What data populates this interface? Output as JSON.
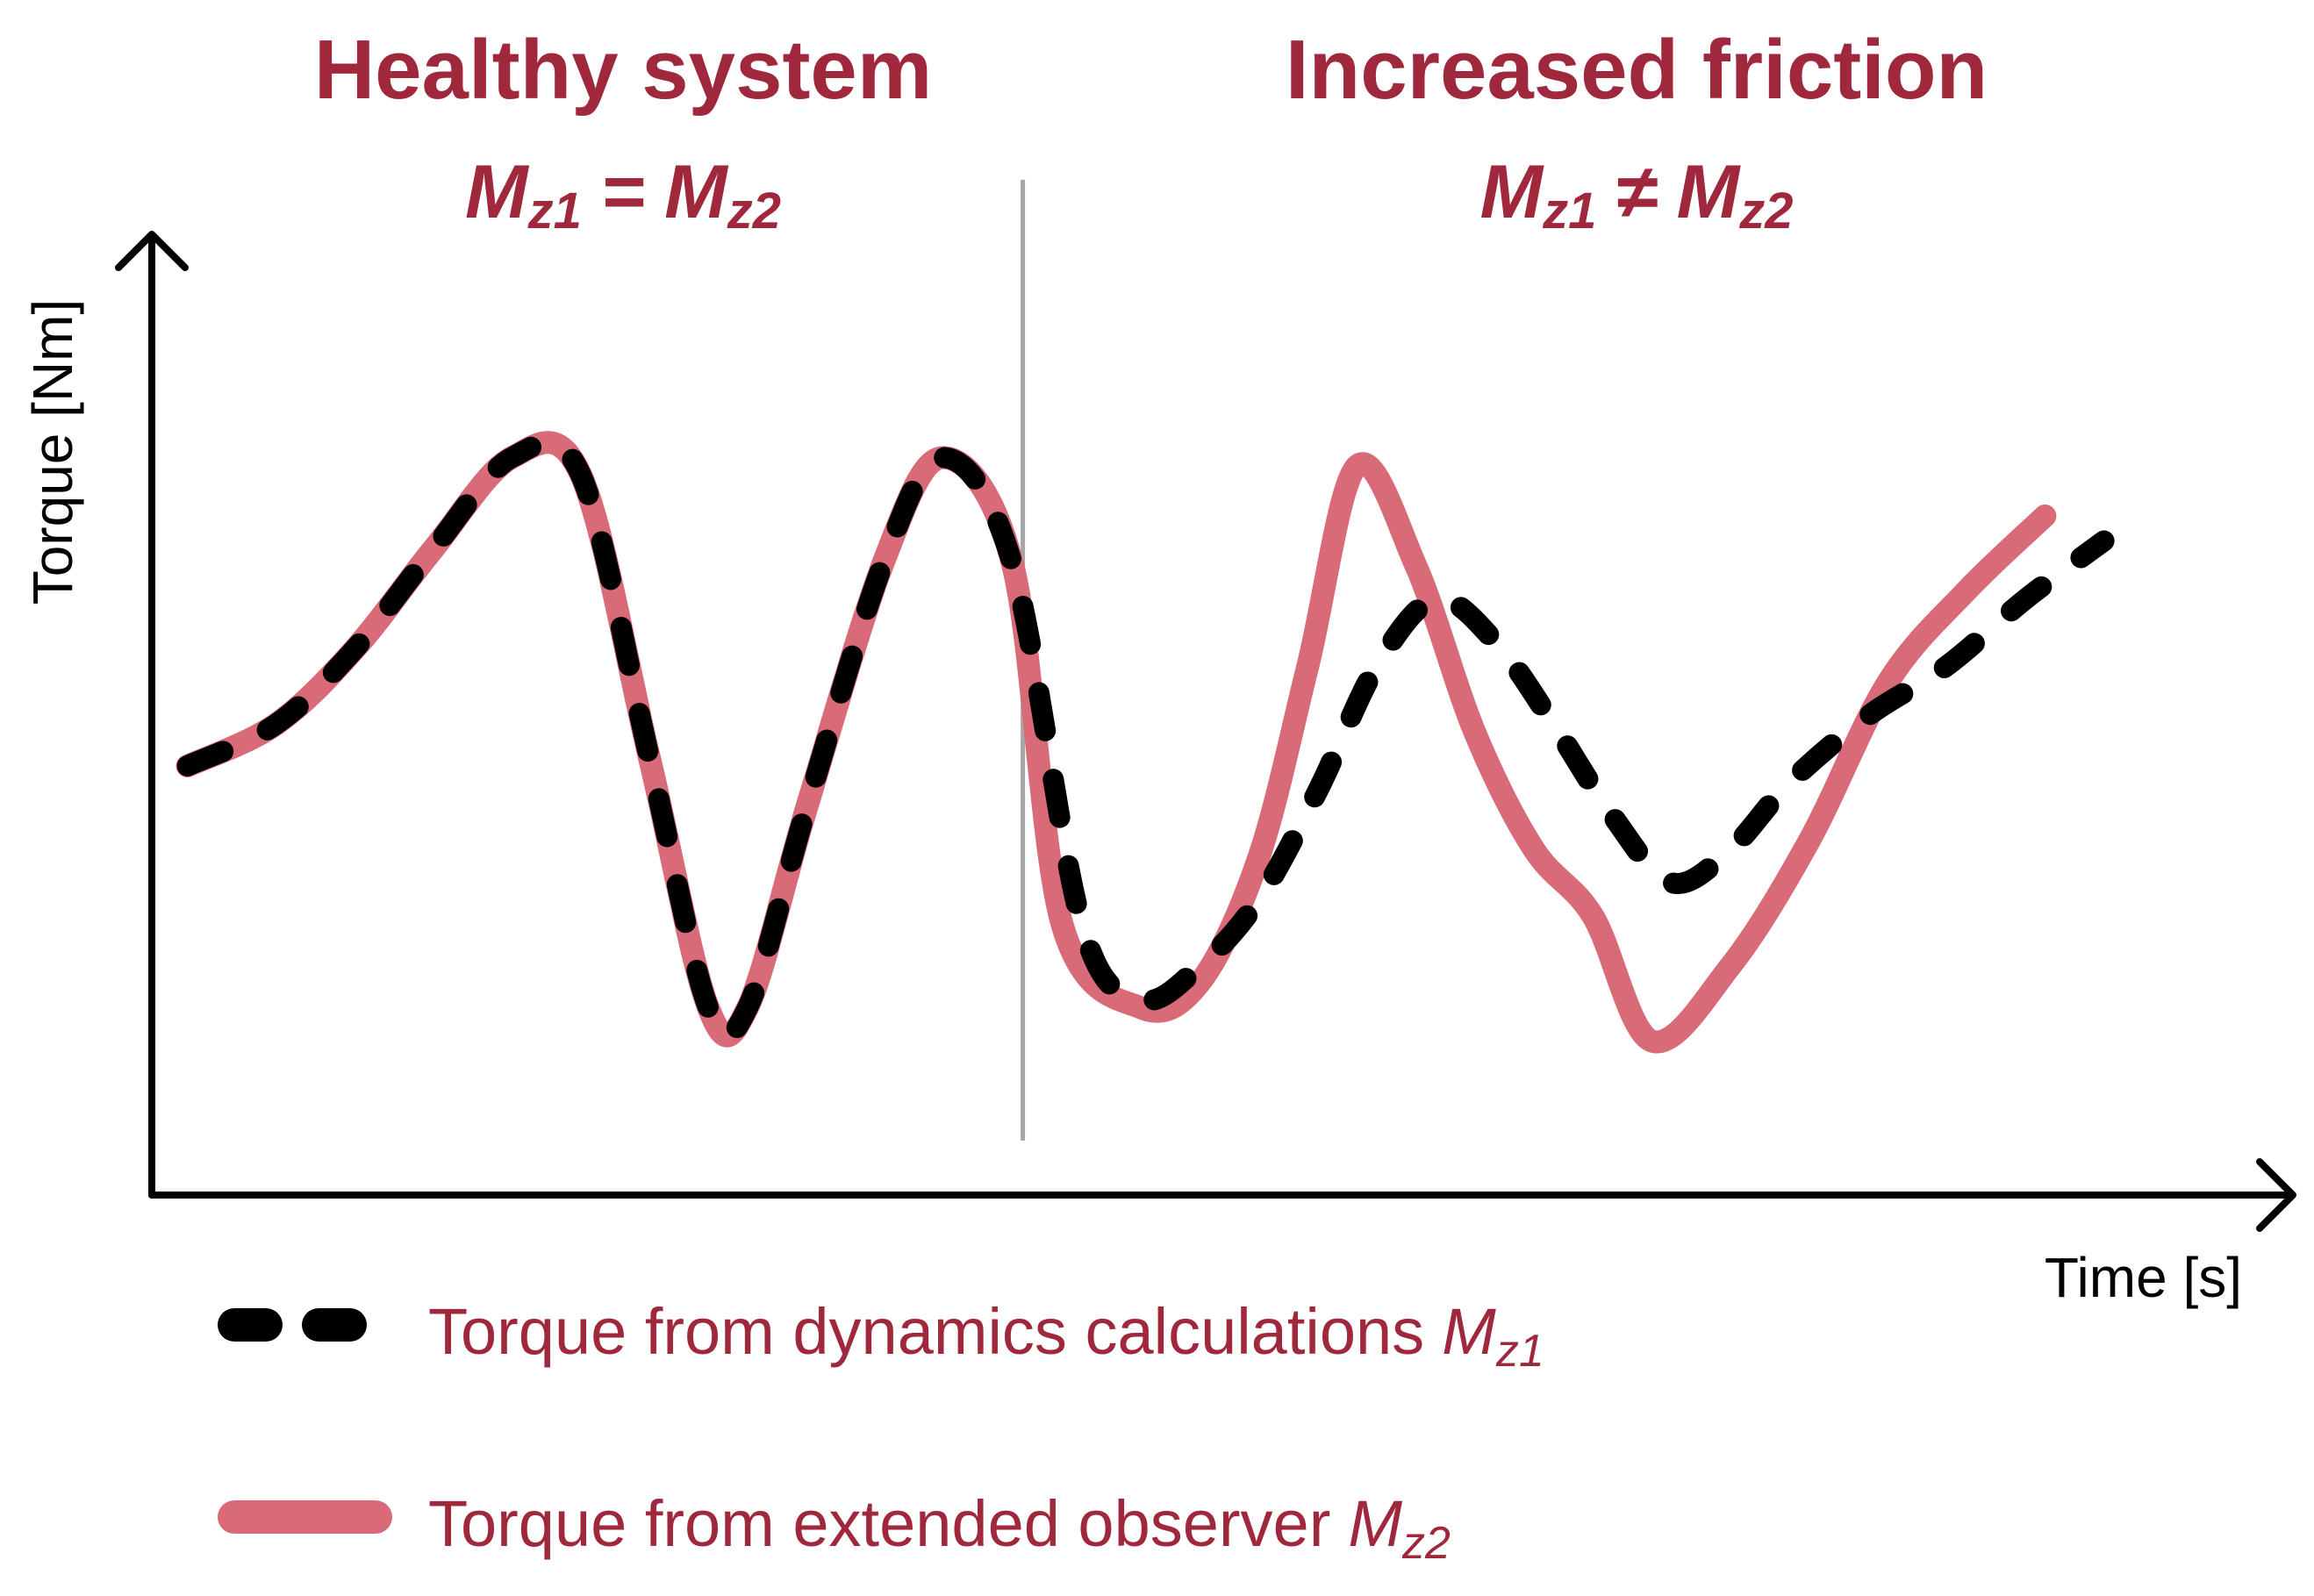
{
  "colors": {
    "accent": "#a0283c",
    "observer_line": "#d96a78",
    "dynamics_line": "#000000",
    "divider": "#a6a6a6",
    "axis": "#000000"
  },
  "sections": {
    "left": {
      "title": "Healthy system",
      "formula": {
        "lhs": "M",
        "lhs_sub": "z1",
        "op": "=",
        "rhs": "M",
        "rhs_sub": "z2"
      }
    },
    "right": {
      "title": "Increased friction",
      "formula": {
        "lhs": "M",
        "lhs_sub": "z1",
        "op": "≠",
        "rhs": "M",
        "rhs_sub": "z2"
      }
    }
  },
  "chart_data": {
    "type": "line",
    "xlabel": "Time [s]",
    "ylabel": "Torque [Nm]",
    "axis_ticks": "none",
    "grid": false,
    "legend_placement": "bottom",
    "xlim": [
      0,
      100
    ],
    "ylim": [
      0,
      100
    ],
    "divider_x": 44,
    "series": [
      {
        "name": "Torque from dynamics calculations",
        "symbol": "M",
        "symbol_sub": "z1",
        "style": "dashed",
        "color": "#000000",
        "x": [
          1.5,
          6,
          10,
          14,
          18,
          21.5,
          25,
          28,
          30,
          33,
          37,
          40,
          43.5,
          47,
          50,
          53,
          56,
          59,
          62,
          65,
          68,
          71,
          74,
          77,
          80,
          83,
          87,
          91,
          95,
          99
        ],
        "y": [
          46,
          51,
          60,
          72,
          83,
          81,
          47,
          17,
          17,
          41,
          71,
          83,
          70,
          27,
          18,
          22,
          30,
          43,
          58,
          66,
          61,
          51,
          40,
          32,
          36,
          44,
          52,
          58,
          66,
          73
        ]
      },
      {
        "name": "Torque from extended observer",
        "symbol": "M",
        "symbol_sub": "z2",
        "style": "solid",
        "color": "#d96a78",
        "x": [
          1.5,
          6,
          10,
          14,
          18,
          21.5,
          25,
          28,
          30,
          33,
          37,
          40,
          43.5,
          46,
          50,
          53,
          56,
          58.5,
          61,
          64,
          67,
          70,
          73,
          76,
          80,
          84,
          88,
          92,
          96
        ],
        "y": [
          46,
          51,
          60,
          72,
          83,
          81,
          47,
          17,
          17,
          41,
          71,
          83,
          70,
          27,
          17,
          20,
          35,
          58,
          82,
          70,
          50,
          36,
          28,
          13,
          22,
          37,
          56,
          67,
          76
        ]
      }
    ]
  }
}
